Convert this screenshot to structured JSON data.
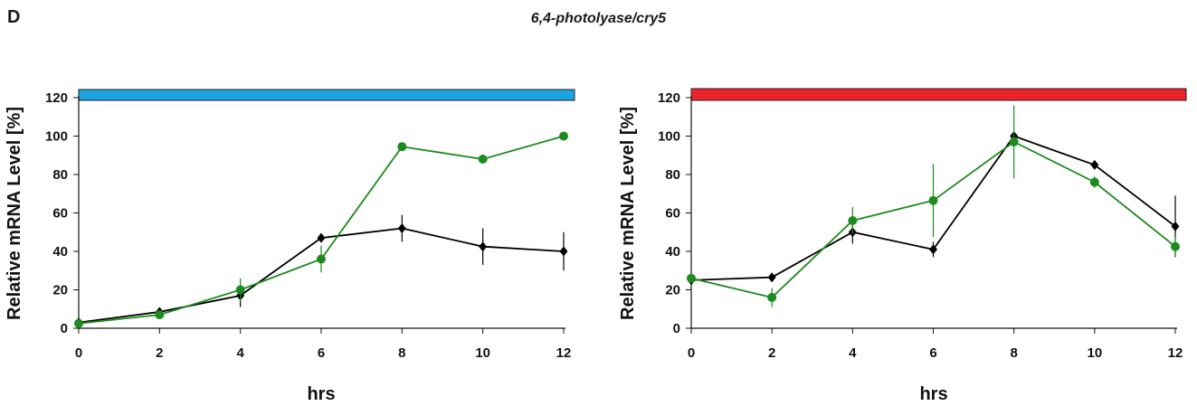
{
  "figure": {
    "panel_letter": "D",
    "title": "6,4-photolyase/cry5"
  },
  "chart_data": [
    {
      "type": "line",
      "title": "",
      "xlabel": "hrs",
      "ylabel": "Relative mRNA Level [%]",
      "xlim": [
        0,
        12
      ],
      "ylim": [
        0,
        120
      ],
      "xticks": [
        0,
        2,
        4,
        6,
        8,
        10,
        12
      ],
      "yticks": [
        0,
        20,
        40,
        60,
        80,
        100,
        120
      ],
      "condition_bar_color": "#1aa3e0",
      "grid": false,
      "x": [
        0,
        2,
        4,
        6,
        8,
        10,
        12
      ],
      "series": [
        {
          "color": "#000000",
          "marker": "diamond",
          "values": [
            3,
            8.5,
            17,
            47,
            52,
            42.5,
            40
          ],
          "errors": [
            0,
            1,
            6,
            0,
            7,
            9.5,
            10
          ]
        },
        {
          "color": "#1e8b1e",
          "marker": "circle",
          "values": [
            2.5,
            7,
            20,
            36,
            94.5,
            88,
            100
          ],
          "errors": [
            0,
            0,
            6,
            7,
            0,
            0,
            0
          ]
        }
      ]
    },
    {
      "type": "line",
      "title": "",
      "xlabel": "hrs",
      "ylabel": "Relative mRNA Level [%]",
      "xlim": [
        0,
        12
      ],
      "ylim": [
        0,
        120
      ],
      "xticks": [
        0,
        2,
        4,
        6,
        8,
        10,
        12
      ],
      "yticks": [
        0,
        20,
        40,
        60,
        80,
        100,
        120
      ],
      "condition_bar_color": "#e8232a",
      "grid": false,
      "x": [
        0,
        2,
        4,
        6,
        8,
        10,
        12
      ],
      "series": [
        {
          "color": "#000000",
          "marker": "diamond",
          "values": [
            25,
            26.5,
            50,
            41,
            100,
            85,
            53
          ],
          "errors": [
            0,
            0,
            6,
            4,
            0,
            0,
            16
          ]
        },
        {
          "color": "#1e8b1e",
          "marker": "circle",
          "values": [
            26,
            16,
            56,
            66.5,
            97,
            76,
            42.5
          ],
          "errors": [
            0,
            5,
            7,
            19,
            19,
            3,
            5
          ]
        }
      ]
    }
  ]
}
